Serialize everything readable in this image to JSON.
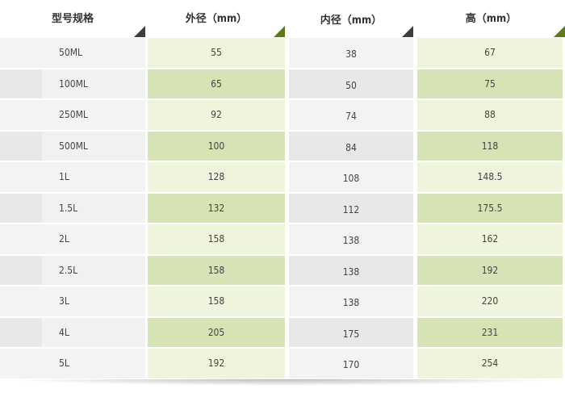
{
  "headers": [
    "型号规格",
    "外径（mm）",
    "内径（mm）",
    "高（mm）"
  ],
  "rows": [
    [
      "50ML",
      "55",
      "38",
      "67"
    ],
    [
      "100ML",
      "65",
      "50",
      "75"
    ],
    [
      "250ML",
      "92",
      "74",
      "88"
    ],
    [
      "500ML",
      "100",
      "84",
      "118"
    ],
    [
      "1L",
      "128",
      "108",
      "148.5"
    ],
    [
      "1.5L",
      "132",
      "112",
      "175.5"
    ],
    [
      "2L",
      "158",
      "138",
      "162"
    ],
    [
      "2.5L",
      "158",
      "138",
      "192"
    ],
    [
      "3L",
      "158",
      "138",
      "220"
    ],
    [
      "4L",
      "205",
      "175",
      "231"
    ],
    [
      "5L",
      "192",
      "170",
      "254"
    ]
  ],
  "colors": {
    "green_light": "#eef5dc",
    "green_dark": "#d6e3b4",
    "gray_light": "#f3f3f3",
    "gray_dark": "#e8e8e8",
    "corner_green": "#5f7a1a",
    "corner_gray": "#3a3f3f"
  }
}
